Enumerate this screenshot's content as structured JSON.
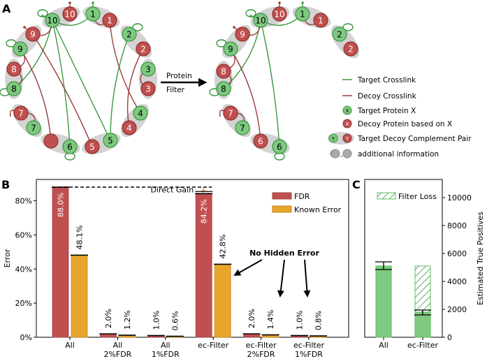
{
  "panels": {
    "a": "A",
    "b": "B",
    "c": "C"
  },
  "colors": {
    "target": "#7dc97f",
    "target_stroke": "#3b9440",
    "decoy": "#c0504f",
    "decoy_stroke": "#8f2f30",
    "target_line": "#3a9a3e",
    "decoy_line": "#9a3b3b",
    "pair_bg": "#d3d3d3",
    "fdr": "#c0504f",
    "known_error": "#e9a42c",
    "tp": "#7fca80"
  },
  "diagram": {
    "filter_label_1": "Protein",
    "filter_label_2": "Filter",
    "left": {
      "nodes": [
        {
          "id": "10g",
          "label": "10",
          "kind": "target"
        },
        {
          "id": "10r",
          "label": "10",
          "kind": "decoy"
        },
        {
          "id": "1g",
          "label": "1",
          "kind": "target"
        },
        {
          "id": "1r",
          "label": "1",
          "kind": "decoy"
        },
        {
          "id": "2g",
          "label": "2",
          "kind": "target"
        },
        {
          "id": "2r",
          "label": "2",
          "kind": "decoy"
        },
        {
          "id": "3g",
          "label": "3",
          "kind": "target"
        },
        {
          "id": "3r",
          "label": "3",
          "kind": "decoy"
        },
        {
          "id": "4g",
          "label": "4",
          "kind": "target"
        },
        {
          "id": "4r",
          "label": "4",
          "kind": "decoy"
        },
        {
          "id": "5g",
          "label": "5",
          "kind": "target"
        },
        {
          "id": "5r",
          "label": "5",
          "kind": "decoy"
        },
        {
          "id": "6g",
          "label": "6",
          "kind": "target"
        },
        {
          "id": "6r",
          "label": "",
          "kind": "decoy"
        },
        {
          "id": "7g",
          "label": "7",
          "kind": "target"
        },
        {
          "id": "7r",
          "label": "7",
          "kind": "decoy"
        },
        {
          "id": "8g",
          "label": "8",
          "kind": "target"
        },
        {
          "id": "8r",
          "label": "8",
          "kind": "decoy"
        },
        {
          "id": "9g",
          "label": "9",
          "kind": "target"
        },
        {
          "id": "9r",
          "label": "9",
          "kind": "decoy"
        }
      ],
      "target_links": [
        [
          "10g",
          "1g"
        ],
        [
          "10g",
          "8g"
        ],
        [
          "10g",
          "6g"
        ],
        [
          "10g",
          "5g"
        ],
        [
          "2g",
          "5g"
        ]
      ],
      "decoy_links": [
        [
          "1g",
          "1r"
        ],
        [
          "1r",
          "4g"
        ],
        [
          "2r",
          "4r"
        ],
        [
          "3g",
          "3r"
        ],
        [
          "9r",
          "10g"
        ],
        [
          "9r",
          "5r"
        ],
        [
          "9g",
          "6r"
        ],
        [
          "9g",
          "8r"
        ],
        [
          "8r",
          "8g"
        ],
        [
          "7r",
          "7g"
        ]
      ]
    },
    "right": {
      "nodes": [
        {
          "id": "10g",
          "label": "10",
          "kind": "target"
        },
        {
          "id": "10r",
          "label": "10",
          "kind": "decoy"
        },
        {
          "id": "1g",
          "label": "1",
          "kind": "target"
        },
        {
          "id": "1r",
          "label": "1",
          "kind": "decoy"
        },
        {
          "id": "2g",
          "label": "2",
          "kind": "target"
        },
        {
          "id": "2r",
          "label": "2",
          "kind": "decoy"
        },
        {
          "id": "6g",
          "label": "6",
          "kind": "target"
        },
        {
          "id": "6r",
          "label": "6",
          "kind": "decoy"
        },
        {
          "id": "7g",
          "label": "7",
          "kind": "target"
        },
        {
          "id": "7r",
          "label": "7",
          "kind": "decoy"
        },
        {
          "id": "8g",
          "label": "8",
          "kind": "target"
        },
        {
          "id": "8r",
          "label": "8",
          "kind": "decoy"
        },
        {
          "id": "9g",
          "label": "9",
          "kind": "target"
        },
        {
          "id": "9r",
          "label": "9",
          "kind": "decoy"
        }
      ],
      "target_links": [
        [
          "10g",
          "1g"
        ],
        [
          "10g",
          "8g"
        ],
        [
          "10g",
          "6g"
        ]
      ],
      "decoy_links": [
        [
          "1g",
          "1r"
        ],
        [
          "9r",
          "10g"
        ],
        [
          "9g",
          "6r"
        ],
        [
          "9g",
          "8r"
        ],
        [
          "8r",
          "8g"
        ],
        [
          "7r",
          "7g"
        ]
      ]
    },
    "legend": {
      "target_crosslink": "Target Crosslink",
      "decoy_crosslink": "Decoy Crosslink",
      "target_protein": "Target Protein X",
      "decoy_protein": "Decoy Protein based on X",
      "pair": "Target Decoy Complement Pair",
      "additional": "additional information",
      "x_glyph": "X",
      "y_glyph": "Y"
    }
  },
  "chart_data": [
    {
      "type": "bar",
      "ylabel": "Error",
      "ylim": [
        0,
        92.5
      ],
      "yticks": [
        "0%",
        "20%",
        "40%",
        "60%",
        "80%"
      ],
      "ytick_values": [
        0,
        20,
        40,
        60,
        80
      ],
      "categories": [
        [
          "All",
          ""
        ],
        [
          "All",
          "2%FDR"
        ],
        [
          "All",
          "1%FDR"
        ],
        [
          "ec-Filter",
          ""
        ],
        [
          "ec-Filter",
          "2%FDR"
        ],
        [
          "ec-Filter",
          "1%FDR"
        ]
      ],
      "series": [
        {
          "name": "FDR",
          "values": [
            88.0,
            2.0,
            1.0,
            84.2,
            2.0,
            1.0
          ],
          "labels": [
            "88.0%",
            "2.0%",
            "1.0%",
            "84.2%",
            "2.0%",
            "1.0%"
          ]
        },
        {
          "name": "Known Error",
          "values": [
            48.1,
            1.2,
            0.6,
            42.8,
            1.4,
            0.8
          ],
          "labels": [
            "48.1%",
            "1.2%",
            "0.6%",
            "42.8%",
            "1.4%",
            "0.8%"
          ]
        }
      ],
      "legend_position": "top-right",
      "annotations": {
        "direct_gain": "Direct Gain",
        "no_hidden_error": "No Hidden Error"
      }
    },
    {
      "type": "bar",
      "ylabel": "Estimated True Positives",
      "ylim": [
        0,
        11300
      ],
      "yticks": [
        "0",
        "2000",
        "4000",
        "6000",
        "8000",
        "10000"
      ],
      "ytick_values": [
        0,
        2000,
        4000,
        6000,
        8000,
        10000
      ],
      "categories": [
        "All",
        "ec-Filter"
      ],
      "values": [
        5100,
        1800
      ],
      "errors": [
        [
          4850,
          5400
        ],
        [
          1600,
          1950
        ]
      ],
      "filter_loss": {
        "name": "Filter Loss",
        "from": 1800,
        "to": 5100
      },
      "legend_position": "top-right"
    }
  ]
}
